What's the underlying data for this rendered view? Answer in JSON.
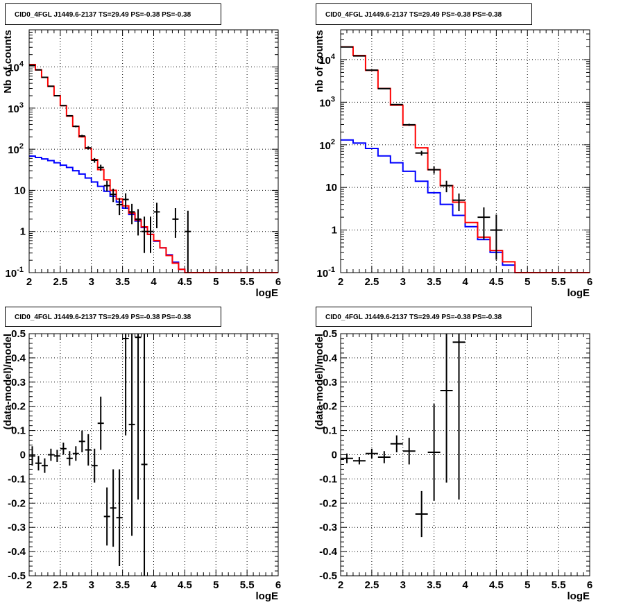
{
  "colors": {
    "data": "#000000",
    "model_total": "#ff0000",
    "model_background": "#0000ff",
    "grid": "#000000"
  },
  "chart_data": [
    {
      "type": "line",
      "title": "CID0_4FGL J1449.6-2137 TS=29.49 PS=-0.38 PS=-0.38",
      "xlabel": "logE",
      "ylabel": "Nb of counts",
      "log_y": true,
      "xlim": [
        2,
        6
      ],
      "ylim": [
        0.1,
        80000
      ],
      "grid": true,
      "x_ticks": [
        "2",
        "2.5",
        "3",
        "3.5",
        "4",
        "4.5",
        "5",
        "5.5",
        "6"
      ],
      "y_ticks": [
        "10^-1",
        "1",
        "10",
        "10^2",
        "10^3",
        "10^4"
      ],
      "bin_edges": [
        2.0,
        2.1,
        2.2,
        2.3,
        2.4,
        2.5,
        2.6,
        2.7,
        2.8,
        2.9,
        3.0,
        3.1,
        3.2,
        3.3,
        3.4,
        3.5,
        3.6,
        3.7,
        3.8,
        3.9,
        4.0,
        4.1,
        4.2,
        4.3,
        4.4,
        4.5,
        4.6,
        4.7,
        4.8,
        4.9,
        5.0,
        5.1,
        5.2,
        5.3,
        5.4,
        5.5,
        5.6,
        5.7,
        5.8,
        5.9,
        6.0
      ],
      "series": [
        {
          "name": "model total",
          "values": [
            11500,
            8500,
            5600,
            3400,
            2000,
            1150,
            640,
            360,
            200,
            105,
            56,
            32,
            18,
            10,
            6.2,
            4.2,
            2.8,
            1.9,
            1.3,
            0.85,
            0.6,
            0.4,
            0.26,
            0.17,
            0.12,
            0.1,
            0.1,
            0.1,
            0.1,
            0.1,
            0.1,
            0.1,
            0.1,
            0.1,
            0.1,
            0.1,
            0.1,
            0.1,
            0.1,
            0.1
          ]
        },
        {
          "name": "model background",
          "values": [
            68,
            63,
            58,
            53,
            47,
            41,
            36,
            30,
            25,
            20,
            16,
            12.5,
            9.5,
            7.2,
            5.2,
            3.7,
            2.6,
            1.8,
            1.25,
            0.85,
            0.58,
            0.4,
            0.27,
            0.18,
            0.12,
            0.1,
            0.1,
            0.1,
            0.1,
            0.1,
            0.1,
            0.1,
            0.1,
            0.1,
            0.1,
            0.1,
            0.1,
            0.1,
            0.1,
            0.1
          ]
        }
      ],
      "data_points": [
        {
          "x": 2.05,
          "y": 11000,
          "ylo": 10900,
          "yhi": 11100
        },
        {
          "x": 2.15,
          "y": 8500,
          "ylo": 8400,
          "yhi": 8600
        },
        {
          "x": 2.25,
          "y": 5600,
          "ylo": 5500,
          "yhi": 5700
        },
        {
          "x": 2.35,
          "y": 3400,
          "ylo": 3330,
          "yhi": 3460
        },
        {
          "x": 2.45,
          "y": 2000,
          "ylo": 1950,
          "yhi": 2050
        },
        {
          "x": 2.55,
          "y": 1150,
          "ylo": 1115,
          "yhi": 1185
        },
        {
          "x": 2.65,
          "y": 650,
          "ylo": 625,
          "yhi": 675
        },
        {
          "x": 2.75,
          "y": 360,
          "ylo": 341,
          "yhi": 379
        },
        {
          "x": 2.85,
          "y": 210,
          "ylo": 196,
          "yhi": 224
        },
        {
          "x": 2.95,
          "y": 108,
          "ylo": 98,
          "yhi": 118
        },
        {
          "x": 3.05,
          "y": 54,
          "ylo": 47,
          "yhi": 61
        },
        {
          "x": 3.15,
          "y": 36,
          "ylo": 30,
          "yhi": 42
        },
        {
          "x": 3.25,
          "y": 13,
          "ylo": 9.5,
          "yhi": 17
        },
        {
          "x": 3.35,
          "y": 8,
          "ylo": 5.2,
          "yhi": 11
        },
        {
          "x": 3.45,
          "y": 4.5,
          "ylo": 2.5,
          "yhi": 6.5
        },
        {
          "x": 3.55,
          "y": 6,
          "ylo": 3.6,
          "yhi": 8.5
        },
        {
          "x": 3.65,
          "y": 3,
          "ylo": 1.5,
          "yhi": 4.7
        },
        {
          "x": 3.75,
          "y": 2,
          "ylo": 0.8,
          "yhi": 3.5
        },
        {
          "x": 3.85,
          "y": 1,
          "ylo": 0.3,
          "yhi": 2.3
        },
        {
          "x": 3.95,
          "y": 1,
          "ylo": 0.3,
          "yhi": 2.3
        },
        {
          "x": 4.05,
          "y": 3,
          "ylo": 1.2,
          "yhi": 5
        },
        {
          "x": 4.35,
          "y": 2,
          "ylo": 0.7,
          "yhi": 3.7
        },
        {
          "x": 4.55,
          "y": 1,
          "ylo": 0.1,
          "yhi": 3.2
        }
      ]
    },
    {
      "type": "line",
      "title": "CID0_4FGL J1449.6-2137 TS=29.49 PS=-0.38 PS=-0.38",
      "xlabel": "logE",
      "ylabel": "nb of counts",
      "log_y": true,
      "xlim": [
        2,
        6
      ],
      "ylim": [
        0.1,
        50000
      ],
      "grid": true,
      "x_ticks": [
        "2",
        "2.5",
        "3",
        "3.5",
        "4",
        "4.5",
        "5",
        "5.5",
        "6"
      ],
      "y_ticks": [
        "10^-1",
        "1",
        "10",
        "10^2",
        "10^3",
        "10^4"
      ],
      "bin_edges": [
        2.0,
        2.2,
        2.4,
        2.6,
        2.8,
        3.0,
        3.2,
        3.4,
        3.6,
        3.8,
        4.0,
        4.2,
        4.4,
        4.6,
        4.8,
        5.0,
        5.2,
        5.4,
        5.6,
        5.8,
        6.0
      ],
      "series": [
        {
          "name": "model total",
          "values": [
            20000,
            12500,
            5600,
            2100,
            850,
            290,
            85,
            26,
            11,
            4.5,
            1.5,
            0.68,
            0.33,
            0.18,
            0.1,
            0.1,
            0.1,
            0.1,
            0.1,
            0.1
          ]
        },
        {
          "name": "model background",
          "values": [
            130,
            110,
            82,
            55,
            38,
            24,
            14,
            7.5,
            4.0,
            2.2,
            1.2,
            0.6,
            0.3,
            0.15,
            0.1,
            0.1,
            0.1,
            0.1,
            0.1,
            0.1
          ]
        }
      ],
      "data_points": [
        {
          "x": 2.1,
          "y": 19800,
          "ylo": 19660,
          "yhi": 19940
        },
        {
          "x": 2.3,
          "y": 12200,
          "ylo": 12090,
          "yhi": 12310
        },
        {
          "x": 2.5,
          "y": 5650,
          "ylo": 5575,
          "yhi": 5725
        },
        {
          "x": 2.7,
          "y": 2080,
          "ylo": 2035,
          "yhi": 2125
        },
        {
          "x": 2.9,
          "y": 880,
          "ylo": 850,
          "yhi": 910
        },
        {
          "x": 3.1,
          "y": 295,
          "ylo": 278,
          "yhi": 312
        },
        {
          "x": 3.3,
          "y": 64,
          "ylo": 56,
          "yhi": 72
        },
        {
          "x": 3.5,
          "y": 26,
          "ylo": 21,
          "yhi": 31
        },
        {
          "x": 3.7,
          "y": 11,
          "ylo": 7.7,
          "yhi": 14.3
        },
        {
          "x": 3.9,
          "y": 5,
          "ylo": 2.8,
          "yhi": 7.2
        },
        {
          "x": 4.3,
          "y": 2,
          "ylo": 0.6,
          "yhi": 3.4
        },
        {
          "x": 4.5,
          "y": 1,
          "ylo": 0.2,
          "yhi": 2.3
        }
      ]
    },
    {
      "type": "scatter",
      "title": "CID0_4FGL J1449.6-2137 TS=29.49 PS=-0.38 PS=-0.38",
      "xlabel": "logE",
      "ylabel": "(data-model)/model",
      "xlim": [
        2,
        6
      ],
      "ylim": [
        -0.5,
        0.5
      ],
      "grid": true,
      "x_ticks": [
        "2",
        "2.5",
        "3",
        "3.5",
        "4",
        "4.5",
        "5",
        "5.5",
        "6"
      ],
      "y_ticks": [
        "-0.5",
        "-0.4",
        "-0.3",
        "-0.2",
        "-0.1",
        "0",
        "0.1",
        "0.2",
        "0.3",
        "0.4",
        "0.5"
      ],
      "x_half_width": 0.05,
      "points": [
        {
          "x": 2.05,
          "y": -0.005,
          "err": 0.04
        },
        {
          "x": 2.15,
          "y": -0.035,
          "err": 0.03
        },
        {
          "x": 2.25,
          "y": -0.045,
          "err": 0.03
        },
        {
          "x": 2.35,
          "y": 0.0,
          "err": 0.025
        },
        {
          "x": 2.45,
          "y": -0.005,
          "err": 0.025
        },
        {
          "x": 2.55,
          "y": 0.025,
          "err": 0.025
        },
        {
          "x": 2.65,
          "y": -0.015,
          "err": 0.03
        },
        {
          "x": 2.75,
          "y": 0.005,
          "err": 0.03
        },
        {
          "x": 2.85,
          "y": 0.055,
          "err": 0.045
        },
        {
          "x": 2.95,
          "y": 0.02,
          "err": 0.065
        },
        {
          "x": 3.05,
          "y": -0.045,
          "err": 0.07
        },
        {
          "x": 3.15,
          "y": 0.13,
          "err": 0.11
        },
        {
          "x": 3.25,
          "y": -0.255,
          "err": 0.12
        },
        {
          "x": 3.35,
          "y": -0.22,
          "err": 0.16
        },
        {
          "x": 3.45,
          "y": -0.26,
          "err": 0.2
        },
        {
          "x": 3.55,
          "y": 0.48,
          "err": 0.4
        },
        {
          "x": 3.65,
          "y": 0.125,
          "err": 0.46
        },
        {
          "x": 3.75,
          "y": 0.485,
          "err": 0.67
        },
        {
          "x": 3.85,
          "y": -0.04,
          "err": 0.62
        }
      ]
    },
    {
      "type": "scatter",
      "title": "CID0_4FGL J1449.6-2137 TS=29.49 PS=-0.38 PS=-0.38",
      "xlabel": "logE",
      "ylabel": "(data-model)/model",
      "xlim": [
        2,
        6
      ],
      "ylim": [
        -0.5,
        0.5
      ],
      "grid": true,
      "x_ticks": [
        "2",
        "2.5",
        "3",
        "3.5",
        "4",
        "4.5",
        "5",
        "5.5",
        "6"
      ],
      "y_ticks": [
        "-0.5",
        "-0.4",
        "-0.3",
        "-0.2",
        "-0.1",
        "0",
        "0.1",
        "0.2",
        "0.3",
        "0.4",
        "0.5"
      ],
      "x_half_width": 0.1,
      "points": [
        {
          "x": 2.1,
          "y": -0.015,
          "err": 0.02
        },
        {
          "x": 2.3,
          "y": -0.025,
          "err": 0.015
        },
        {
          "x": 2.5,
          "y": 0.005,
          "err": 0.02
        },
        {
          "x": 2.7,
          "y": -0.01,
          "err": 0.025
        },
        {
          "x": 2.9,
          "y": 0.045,
          "err": 0.035
        },
        {
          "x": 3.1,
          "y": 0.015,
          "err": 0.055
        },
        {
          "x": 3.3,
          "y": -0.245,
          "err": 0.095
        },
        {
          "x": 3.5,
          "y": 0.01,
          "err": 0.2
        },
        {
          "x": 3.7,
          "y": 0.265,
          "err": 0.38
        },
        {
          "x": 3.9,
          "y": 0.465,
          "err": 0.65
        }
      ]
    }
  ]
}
